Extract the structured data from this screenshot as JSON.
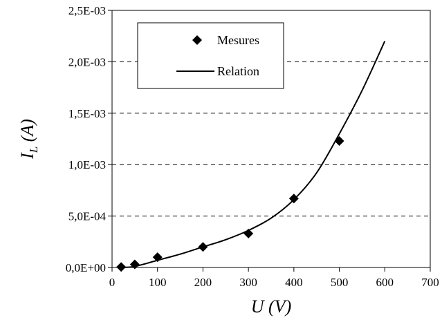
{
  "chart_data": {
    "type": "scatter",
    "xlabel": "U (V)",
    "ylabel_main": "I",
    "ylabel_sub": "L",
    "ylabel_rest": " (A)",
    "xlim": [
      0,
      700
    ],
    "ylim": [
      0,
      0.0025
    ],
    "x_ticks": [
      0,
      100,
      200,
      300,
      400,
      500,
      600,
      700
    ],
    "x_tick_labels": [
      "0",
      "100",
      "200",
      "300",
      "400",
      "500",
      "600",
      "700"
    ],
    "y_ticks": [
      0,
      0.0005,
      0.001,
      0.0015,
      0.002,
      0.0025
    ],
    "y_tick_labels": [
      "0,0E+00",
      "5,0E-04",
      "1,0E-03",
      "1,5E-03",
      "2,0E-03",
      "2,5E-03"
    ],
    "grid": "horizontal dashed",
    "legend_position": "top-left",
    "series": [
      {
        "name": "Mesures",
        "marker": "diamond",
        "x": [
          20,
          50,
          100,
          200,
          300,
          400,
          500
        ],
        "y": [
          5e-06,
          3e-05,
          0.0001,
          0.0002,
          0.00033,
          0.00067,
          0.00123
        ]
      },
      {
        "name": "Relation",
        "style": "line",
        "x": [
          20,
          50,
          100,
          150,
          200,
          250,
          300,
          350,
          400,
          450,
          500,
          550,
          600
        ],
        "y": [
          0.0,
          1e-05,
          7e-05,
          0.00013,
          0.0002,
          0.00027,
          0.00036,
          0.00048,
          0.00066,
          0.00092,
          0.0013,
          0.00172,
          0.0022
        ]
      }
    ]
  }
}
